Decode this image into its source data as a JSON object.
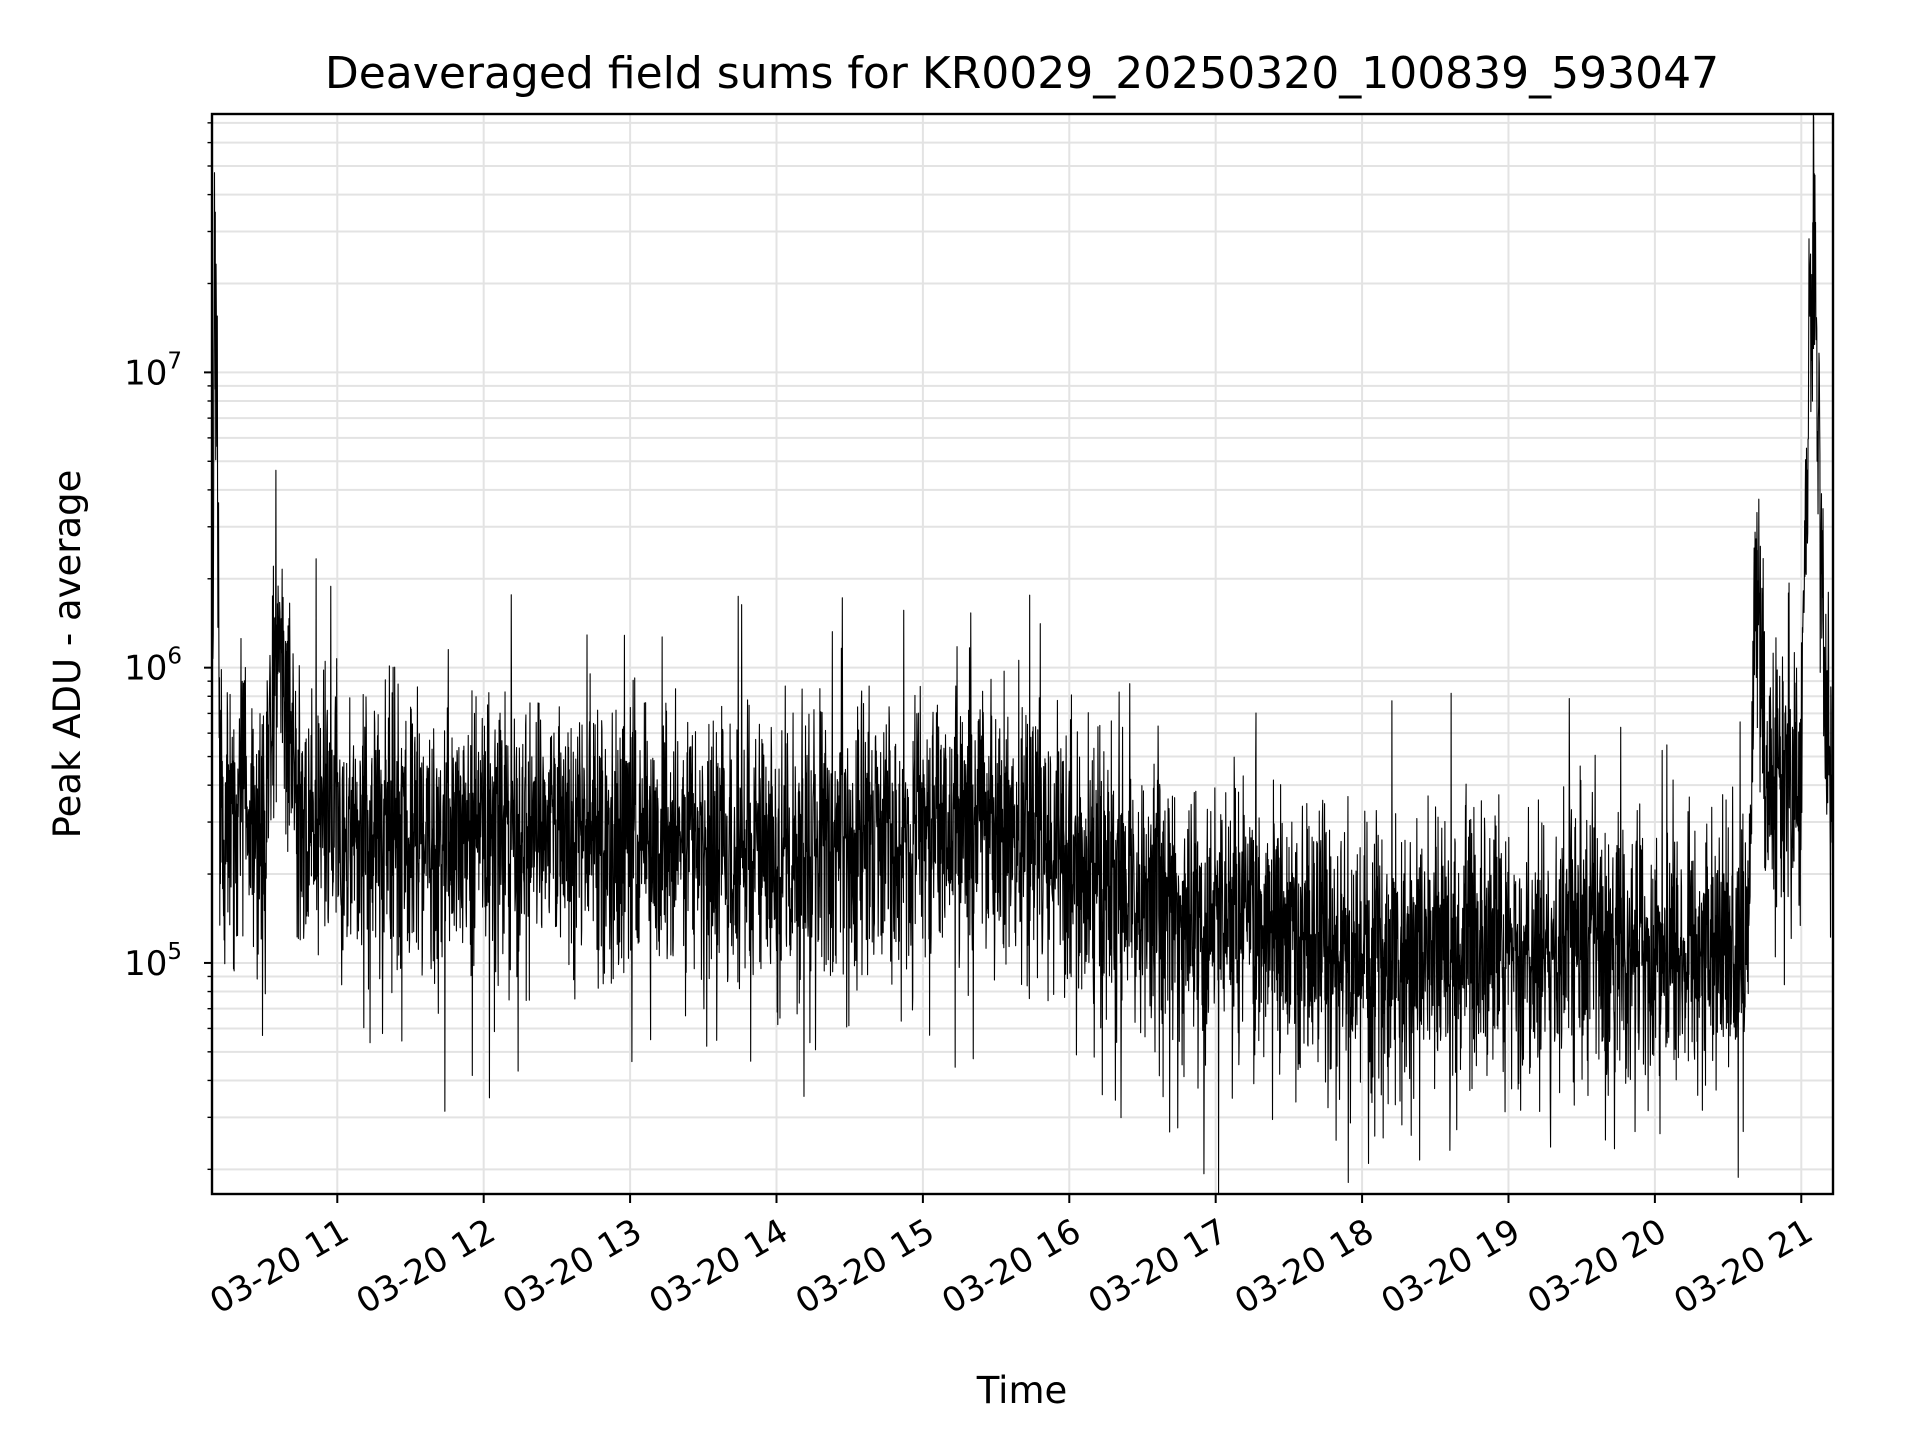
{
  "chart_data": {
    "type": "line",
    "title": "Deaveraged field sums for KR0029_20250320_100839_593047",
    "xlabel": "Time",
    "ylabel": "Peak ADU - average",
    "xlim": [
      "2025-03-20 10:08:39",
      "2025-03-20 21:13:00"
    ],
    "ylim": [
      16500,
      75000000
    ],
    "yscale": "log",
    "grid": true,
    "x_ticks": [
      {
        "time": "2025-03-20 11:00",
        "label": "03-20 11"
      },
      {
        "time": "2025-03-20 12:00",
        "label": "03-20 12"
      },
      {
        "time": "2025-03-20 13:00",
        "label": "03-20 13"
      },
      {
        "time": "2025-03-20 14:00",
        "label": "03-20 14"
      },
      {
        "time": "2025-03-20 15:00",
        "label": "03-20 15"
      },
      {
        "time": "2025-03-20 16:00",
        "label": "03-20 16"
      },
      {
        "time": "2025-03-20 17:00",
        "label": "03-20 17"
      },
      {
        "time": "2025-03-20 18:00",
        "label": "03-20 18"
      },
      {
        "time": "2025-03-20 19:00",
        "label": "03-20 19"
      },
      {
        "time": "2025-03-20 20:00",
        "label": "03-20 20"
      },
      {
        "time": "2025-03-20 21:00",
        "label": "03-20 21"
      }
    ],
    "y_ticks": [
      {
        "value": 100000,
        "base": "10",
        "exponent": "5"
      },
      {
        "value": 1000000,
        "base": "10",
        "exponent": "6"
      },
      {
        "value": 10000000,
        "base": "10",
        "exponent": "7"
      }
    ],
    "series": [
      {
        "color": "#000000",
        "x": [
          "2025-03-20 10:08:39",
          "2025-03-20 10:10",
          "2025-03-20 10:12",
          "2025-03-20 10:15",
          "2025-03-20 10:18",
          "2025-03-20 10:21",
          "2025-03-20 10:25",
          "2025-03-20 10:30",
          "2025-03-20 10:35",
          "2025-03-20 10:40",
          "2025-03-20 10:45",
          "2025-03-20 10:50",
          "2025-03-20 11:00",
          "2025-03-20 11:10",
          "2025-03-20 11:20",
          "2025-03-20 11:30",
          "2025-03-20 11:40",
          "2025-03-20 11:50",
          "2025-03-20 12:00",
          "2025-03-20 12:15",
          "2025-03-20 12:30",
          "2025-03-20 12:45",
          "2025-03-20 13:00",
          "2025-03-20 13:15",
          "2025-03-20 13:30",
          "2025-03-20 13:45",
          "2025-03-20 14:00",
          "2025-03-20 14:15",
          "2025-03-20 14:30",
          "2025-03-20 14:45",
          "2025-03-20 15:00",
          "2025-03-20 15:15",
          "2025-03-20 15:30",
          "2025-03-20 15:45",
          "2025-03-20 16:00",
          "2025-03-20 16:10",
          "2025-03-20 16:20",
          "2025-03-20 16:30",
          "2025-03-20 16:45",
          "2025-03-20 17:00",
          "2025-03-20 17:15",
          "2025-03-20 17:30",
          "2025-03-20 17:45",
          "2025-03-20 18:00",
          "2025-03-20 18:15",
          "2025-03-20 18:30",
          "2025-03-20 18:45",
          "2025-03-20 19:00",
          "2025-03-20 19:15",
          "2025-03-20 19:30",
          "2025-03-20 19:45",
          "2025-03-20 20:00",
          "2025-03-20 20:15",
          "2025-03-20 20:30",
          "2025-03-20 20:38",
          "2025-03-20 20:42",
          "2025-03-20 20:45",
          "2025-03-20 20:50",
          "2025-03-20 20:55",
          "2025-03-20 21:00",
          "2025-03-20 21:05",
          "2025-03-20 21:10",
          "2025-03-20 21:13"
        ],
        "values": [
          400000,
          35000000,
          300000,
          350000,
          250000,
          600000,
          260000,
          280000,
          1400000,
          900000,
          300000,
          320000,
          290000,
          280000,
          300000,
          270000,
          260000,
          280000,
          300000,
          290000,
          310000,
          270000,
          280000,
          260000,
          270000,
          250000,
          240000,
          270000,
          260000,
          280000,
          290000,
          300000,
          270000,
          280000,
          240000,
          200000,
          180000,
          170000,
          160000,
          150000,
          140000,
          130000,
          120000,
          110000,
          100000,
          110000,
          120000,
          120000,
          110000,
          120000,
          120000,
          120000,
          110000,
          120000,
          110000,
          2500000,
          400000,
          450000,
          420000,
          500000,
          48000000,
          600000,
          550000
        ]
      }
    ]
  }
}
